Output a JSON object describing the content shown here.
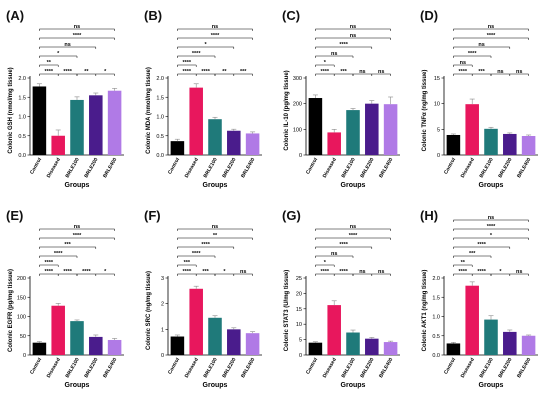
{
  "colors": {
    "Control": "#000000",
    "Diseased": "#e8175d",
    "BRLE100": "#1f7a7a",
    "BRLE200": "#4a1c8c",
    "BRLE400": "#b07ae6"
  },
  "chart_data": [
    {
      "type": "bar",
      "panel": "(A)",
      "ylabel": "Colonic GSH (nmol/mg tissue)",
      "xlabel": "Groups",
      "categories": [
        "Control",
        "Diseased",
        "BRLE100",
        "BRLE200",
        "BRLE400"
      ],
      "values": [
        1.78,
        0.5,
        1.43,
        1.55,
        1.67
      ],
      "errors": [
        0.07,
        0.15,
        0.08,
        0.06,
        0.06
      ],
      "ylim": [
        0,
        2
      ],
      "yticks": [
        "0.0",
        "0.5",
        "1.0",
        "1.5",
        "2.0"
      ],
      "adjacent_sig": [
        "****",
        "****",
        "**",
        "*"
      ],
      "brackets": [
        {
          "to": 1,
          "label": "**"
        },
        {
          "to": 2,
          "label": "*"
        },
        {
          "to": 3,
          "label": "ns"
        },
        {
          "to": 4,
          "label": "****"
        },
        {
          "to": 5,
          "label": "ns"
        }
      ]
    },
    {
      "type": "bar",
      "panel": "(B)",
      "ylabel": "Colonic MDA (nmol/mg tissue)",
      "xlabel": "Groups",
      "categories": [
        "Control",
        "Diseased",
        "BRLE100",
        "BRLE200",
        "BRLE400"
      ],
      "values": [
        0.36,
        1.75,
        0.93,
        0.63,
        0.56
      ],
      "errors": [
        0.05,
        0.1,
        0.05,
        0.04,
        0.04
      ],
      "ylim": [
        0,
        2
      ],
      "yticks": [
        "0.0",
        "0.5",
        "1.0",
        "1.5",
        "2.0"
      ],
      "adjacent_sig": [
        "****",
        "****",
        "**",
        "***"
      ],
      "brackets": [
        {
          "to": 1,
          "label": "****"
        },
        {
          "to": 2,
          "label": "****"
        },
        {
          "to": 3,
          "label": "*"
        },
        {
          "to": 4,
          "label": "****"
        },
        {
          "to": 5,
          "label": "ns"
        }
      ]
    },
    {
      "type": "bar",
      "panel": "(C)",
      "ylabel": "Colonic IL-10 (pg/mg tissue)",
      "xlabel": "Groups",
      "categories": [
        "Control",
        "Diseased",
        "BRLE100",
        "BRLE200",
        "BRLE400"
      ],
      "values": [
        222,
        88,
        175,
        200,
        198
      ],
      "errors": [
        12,
        12,
        6,
        12,
        28
      ],
      "ylim": [
        0,
        300
      ],
      "yticks": [
        "0",
        "100",
        "200",
        "300"
      ],
      "adjacent_sig": [
        "****",
        "***",
        "ns",
        "ns"
      ],
      "brackets": [
        {
          "to": 1,
          "label": "*"
        },
        {
          "to": 2,
          "label": "ns"
        },
        {
          "to": 3,
          "label": "****"
        },
        {
          "to": 4,
          "label": "ns"
        },
        {
          "to": 5,
          "label": "ns"
        }
      ]
    },
    {
      "type": "bar",
      "panel": "(D)",
      "ylabel": "Colonic TNFα (ng/mg tissue)",
      "xlabel": "Groups",
      "categories": [
        "Control",
        "Diseased",
        "BRLE100",
        "BRLE200",
        "BRLE400"
      ],
      "values": [
        3.9,
        9.9,
        5.1,
        4.1,
        3.7
      ],
      "errors": [
        0.2,
        1.0,
        0.3,
        0.2,
        0.2
      ],
      "ylim": [
        0,
        15
      ],
      "yticks": [
        "0",
        "5",
        "10",
        "15"
      ],
      "adjacent_sig": [
        "****",
        "***",
        "ns",
        "ns"
      ],
      "brackets": [
        {
          "to": 1,
          "label": "ns"
        },
        {
          "to": 2,
          "label": "****"
        },
        {
          "to": 3,
          "label": "ns"
        },
        {
          "to": 4,
          "label": "****"
        },
        {
          "to": 5,
          "label": "ns"
        }
      ]
    },
    {
      "type": "bar",
      "panel": "(E)",
      "ylabel": "Colonic EGFR (pg/mg tissue)",
      "xlabel": "Groups",
      "categories": [
        "Control",
        "Diseased",
        "BRLE100",
        "BRLE200",
        "BRLE400"
      ],
      "values": [
        32,
        128,
        88,
        47,
        39
      ],
      "errors": [
        3,
        6,
        3,
        5,
        4
      ],
      "ylim": [
        0,
        200
      ],
      "yticks": [
        "0",
        "50",
        "100",
        "150",
        "200"
      ],
      "adjacent_sig": [
        "****",
        "****",
        "****",
        "*"
      ],
      "brackets": [
        {
          "to": 1,
          "label": "****"
        },
        {
          "to": 2,
          "label": "****"
        },
        {
          "to": 3,
          "label": "***"
        },
        {
          "to": 4,
          "label": "****"
        },
        {
          "to": 5,
          "label": "ns"
        }
      ]
    },
    {
      "type": "bar",
      "panel": "(F)",
      "ylabel": "Colonic SRC (ng/mg tissue)",
      "xlabel": "Groups",
      "categories": [
        "Control",
        "Diseased",
        "BRLE100",
        "BRLE200",
        "BRLE400"
      ],
      "values": [
        0.72,
        2.58,
        1.45,
        1.0,
        0.85
      ],
      "errors": [
        0.06,
        0.1,
        0.08,
        0.06,
        0.06
      ],
      "ylim": [
        0,
        3
      ],
      "yticks": [
        "0",
        "1",
        "2",
        "3"
      ],
      "adjacent_sig": [
        "****",
        "***",
        "*",
        "ns"
      ],
      "brackets": [
        {
          "to": 1,
          "label": "***"
        },
        {
          "to": 2,
          "label": "****"
        },
        {
          "to": 3,
          "label": "****"
        },
        {
          "to": 4,
          "label": "**"
        },
        {
          "to": 5,
          "label": "ns"
        }
      ]
    },
    {
      "type": "bar",
      "panel": "(G)",
      "ylabel": "Colonic STAT3 (U/mg tissue)",
      "xlabel": "Groups",
      "categories": [
        "Control",
        "Diseased",
        "BRLE100",
        "BRLE200",
        "BRLE400"
      ],
      "values": [
        4.0,
        16.2,
        7.3,
        5.3,
        4.2
      ],
      "errors": [
        0.3,
        1.4,
        0.8,
        0.4,
        0.3
      ],
      "ylim": [
        0,
        25
      ],
      "yticks": [
        "0",
        "5",
        "10",
        "15",
        "20",
        "25"
      ],
      "adjacent_sig": [
        "****",
        "****",
        "ns",
        "ns"
      ],
      "brackets": [
        {
          "to": 1,
          "label": "*"
        },
        {
          "to": 2,
          "label": "ns"
        },
        {
          "to": 3,
          "label": "****"
        },
        {
          "to": 4,
          "label": "****"
        },
        {
          "to": 5,
          "label": "ns"
        }
      ]
    },
    {
      "type": "bar",
      "panel": "(H)",
      "ylabel": "Colonic AKT1 (ng/mg tissue)",
      "xlabel": "Groups",
      "categories": [
        "Control",
        "Diseased",
        "BRLE100",
        "BRLE200",
        "BRLE400"
      ],
      "values": [
        0.3,
        1.8,
        0.92,
        0.6,
        0.5
      ],
      "errors": [
        0.03,
        0.1,
        0.1,
        0.05,
        0.02
      ],
      "ylim": [
        0,
        2
      ],
      "yticks": [
        "0.0",
        "0.5",
        "1.0",
        "1.5",
        "2.0"
      ],
      "adjacent_sig": [
        "****",
        "****",
        "*",
        "ns"
      ],
      "brackets": [
        {
          "to": 1,
          "label": "**"
        },
        {
          "to": 2,
          "label": "***"
        },
        {
          "to": 3,
          "label": "****"
        },
        {
          "to": 4,
          "label": "*"
        },
        {
          "to": 5,
          "label": "****"
        },
        {
          "to": 6,
          "label": "ns"
        }
      ]
    }
  ]
}
